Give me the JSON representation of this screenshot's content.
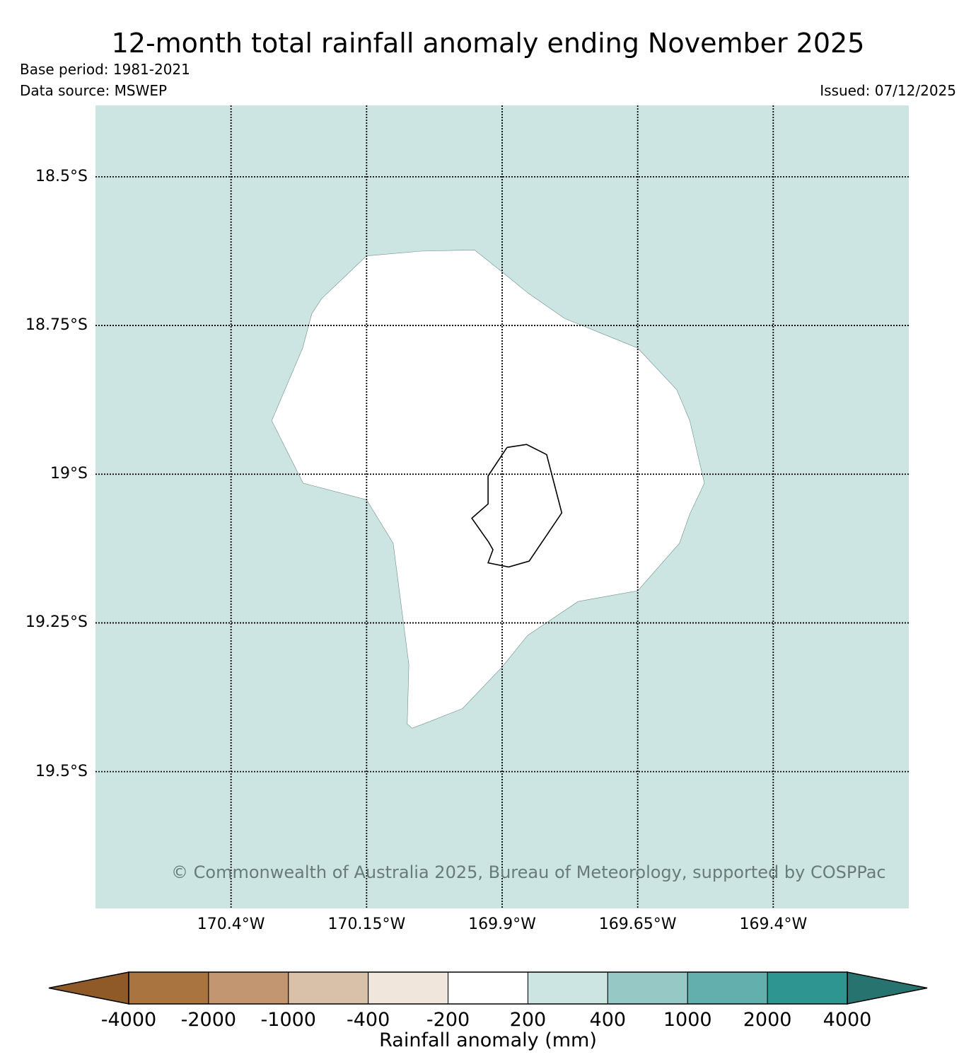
{
  "title": "12-month total rainfall anomaly ending November 2025",
  "base_period": "Base period: 1981-2021",
  "data_source": "Data source: MSWEP",
  "issued": "Issued: 07/12/2025",
  "copyright": "© Commonwealth of Australia 2025, Bureau of Meteorology, supported by COSPPac",
  "map": {
    "background_color": "#cce5e3",
    "island_color": "#ffffff",
    "lon_range": [
      -170.65,
      -169.15
    ],
    "lat_range": [
      -19.73,
      -18.38
    ],
    "lat_ticks": [
      {
        "value": -18.5,
        "label": "18.5°S"
      },
      {
        "value": -18.75,
        "label": "18.75°S"
      },
      {
        "value": -19.0,
        "label": "19°S"
      },
      {
        "value": -19.25,
        "label": "19.25°S"
      },
      {
        "value": -19.5,
        "label": "19.5°S"
      }
    ],
    "lon_ticks": [
      {
        "value": -170.4,
        "label": "170.4°W"
      },
      {
        "value": -170.15,
        "label": "170.15°W"
      },
      {
        "value": -169.9,
        "label": "169.9°W"
      },
      {
        "value": -169.65,
        "label": "169.65°W"
      },
      {
        "value": -169.4,
        "label": "169.4°W"
      }
    ],
    "anomaly_region": [
      [
        -170.15,
        -18.633
      ],
      [
        -170.233,
        -18.705
      ],
      [
        -170.251,
        -18.73
      ],
      [
        -170.268,
        -18.788
      ],
      [
        -170.325,
        -18.91
      ],
      [
        -170.267,
        -19.015
      ],
      [
        -170.15,
        -19.043
      ],
      [
        -170.101,
        -19.116
      ],
      [
        -170.072,
        -19.32
      ],
      [
        -170.075,
        -19.42
      ],
      [
        -170.066,
        -19.427
      ],
      [
        -170.04,
        -19.418
      ],
      [
        -169.973,
        -19.394
      ],
      [
        -169.9,
        -19.324
      ],
      [
        -169.853,
        -19.271
      ],
      [
        -169.76,
        -19.214
      ],
      [
        -169.65,
        -19.196
      ],
      [
        -169.573,
        -19.116
      ],
      [
        -169.554,
        -19.067
      ],
      [
        -169.527,
        -19.015
      ],
      [
        -169.554,
        -18.91
      ],
      [
        -169.578,
        -18.858
      ],
      [
        -169.65,
        -18.788
      ],
      [
        -169.785,
        -18.738
      ],
      [
        -169.853,
        -18.695
      ],
      [
        -169.9,
        -18.66
      ],
      [
        -169.951,
        -18.623
      ],
      [
        -170.05,
        -18.625
      ]
    ],
    "coastline": [
      [
        -169.891,
        -18.955
      ],
      [
        -169.855,
        -18.95
      ],
      [
        -169.818,
        -18.967
      ],
      [
        -169.79,
        -19.065
      ],
      [
        -169.85,
        -19.146
      ],
      [
        -169.888,
        -19.156
      ],
      [
        -169.926,
        -19.149
      ],
      [
        -169.917,
        -19.127
      ],
      [
        -169.925,
        -19.114
      ],
      [
        -169.956,
        -19.074
      ],
      [
        -169.926,
        -19.05
      ],
      [
        -169.926,
        -19.003
      ]
    ]
  },
  "colorbar": {
    "label": "Rainfall anomaly (mm)",
    "ticks": [
      "-4000",
      "-2000",
      "-1000",
      "-400",
      "-200",
      "200",
      "400",
      "1000",
      "2000",
      "4000"
    ],
    "under_color": "#8f5a27",
    "over_color": "#26736f",
    "colors": [
      "#aa7440",
      "#c19670",
      "#d9c0a8",
      "#f1e6dc",
      "#ffffff",
      "#cce5e3",
      "#96c8c6",
      "#62afad",
      "#2f9591"
    ]
  }
}
